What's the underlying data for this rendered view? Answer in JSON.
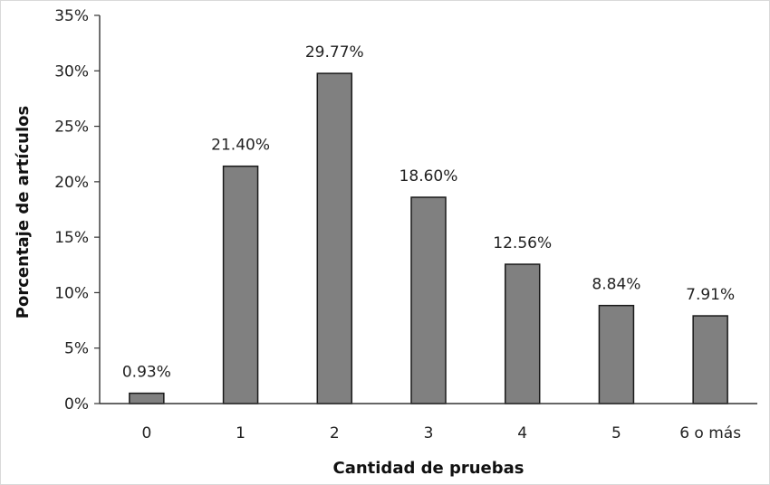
{
  "chart_data": {
    "type": "bar",
    "xlabel": "Cantidad de pruebas",
    "ylabel": "Porcentaje de artículos",
    "categories": [
      "0",
      "1",
      "2",
      "3",
      "4",
      "5",
      "6 o más"
    ],
    "values": [
      0.93,
      21.4,
      29.77,
      18.6,
      12.56,
      8.84,
      7.91
    ],
    "value_labels": [
      "0.93%",
      "21.40%",
      "29.77%",
      "18.60%",
      "12.56%",
      "8.84%",
      "7.91%"
    ],
    "ylim": [
      0,
      35
    ],
    "yticks": [
      0,
      5,
      10,
      15,
      20,
      25,
      30,
      35
    ],
    "ytick_labels": [
      "0%",
      "5%",
      "10%",
      "15%",
      "20%",
      "25%",
      "30%",
      "35%"
    ],
    "grid": false,
    "legend": "none",
    "bar_color": "#808080",
    "bar_edge_color": "#1a1a1a"
  }
}
